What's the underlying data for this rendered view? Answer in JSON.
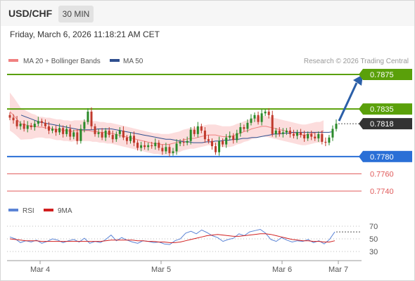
{
  "header": {
    "symbol": "USD/CHF",
    "timeframe": "30 MIN"
  },
  "datetime": "Friday, March 6, 2026 11:18:21 AM CET",
  "legend": {
    "ma20_label": "MA 20 + Bollinger Bands",
    "ma50_label": "MA 50",
    "credit": "Research © 2026 Trading Central"
  },
  "colors": {
    "resistance": "#5aa00a",
    "support": "#2a6fd6",
    "support2": "#e05a5a",
    "ma20": "#f08080",
    "ma50": "#2f4f8f",
    "band": "#fbd5d5",
    "candle_up": "#2a8a2a",
    "candle_down": "#c0392b",
    "rsi": "#5b84d6",
    "rsi_ma": "#d11f1f",
    "price_box": "#333333"
  },
  "levels": [
    {
      "value": "0.7875",
      "kind": "resistance"
    },
    {
      "value": "0.7835",
      "kind": "resistance"
    },
    {
      "value": "0.7818",
      "kind": "current"
    },
    {
      "value": "0.7780",
      "kind": "support"
    },
    {
      "value": "0.7760",
      "kind": "support2"
    },
    {
      "value": "0.7740",
      "kind": "support2"
    }
  ],
  "rsi_legend": {
    "rsi_label": "RSI",
    "ma_label": "9MA"
  },
  "rsi_ticks": [
    "70",
    "50",
    "30"
  ],
  "x_ticks": [
    "Mar 4",
    "Mar 5",
    "Mar 6",
    "Mar 7"
  ],
  "chart_data": {
    "type": "candlestick",
    "title": "USD/CHF",
    "subtitle": "30 MIN",
    "y_levels": [
      0.7875,
      0.7835,
      0.7818,
      0.778,
      0.776,
      0.774
    ],
    "current_price": 0.7818,
    "x_ticks": [
      "Mar 4",
      "Mar 5",
      "Mar 6",
      "Mar 7"
    ],
    "ohlc_close": [
      0.7825,
      0.7822,
      0.7815,
      0.7818,
      0.7812,
      0.7816,
      0.7814,
      0.7818,
      0.7821,
      0.7819,
      0.7815,
      0.781,
      0.7812,
      0.7808,
      0.7813,
      0.7806,
      0.7812,
      0.7803,
      0.7808,
      0.7798,
      0.7812,
      0.782,
      0.7832,
      0.7815,
      0.7806,
      0.7808,
      0.7802,
      0.781,
      0.7805,
      0.78,
      0.7806,
      0.781,
      0.7802,
      0.7798,
      0.7804,
      0.7796,
      0.779,
      0.7793,
      0.7791,
      0.7793,
      0.7792,
      0.7796,
      0.779,
      0.7786,
      0.7791,
      0.7784,
      0.7786,
      0.7795,
      0.7797,
      0.7796,
      0.7798,
      0.7811,
      0.7806,
      0.7815,
      0.781,
      0.78,
      0.7798,
      0.7792,
      0.7785,
      0.7798,
      0.7794,
      0.7802,
      0.7804,
      0.7799,
      0.7807,
      0.7814,
      0.7812,
      0.7819,
      0.7824,
      0.7828,
      0.782,
      0.783,
      0.7832,
      0.7828,
      0.7806,
      0.781,
      0.7806,
      0.7808,
      0.781,
      0.7806,
      0.7804,
      0.7808,
      0.7805,
      0.7801,
      0.7806,
      0.7803,
      0.7801,
      0.7806,
      0.7797,
      0.7796,
      0.7802,
      0.7812,
      0.7818
    ],
    "ma20": [
      0.7832,
      0.7828,
      0.7823,
      0.7818,
      0.7817,
      0.7816,
      0.7815,
      0.7815,
      0.7814,
      0.7814,
      0.7813,
      0.7813,
      0.7812,
      0.7811,
      0.7811,
      0.781,
      0.781,
      0.7809,
      0.781,
      0.781,
      0.781,
      0.781,
      0.781,
      0.7809,
      0.7809,
      0.7808,
      0.7808,
      0.7807,
      0.7807,
      0.7806,
      0.7805,
      0.7804,
      0.7803,
      0.7802,
      0.7801,
      0.78,
      0.7799,
      0.7798,
      0.7797,
      0.7796,
      0.7795,
      0.7795,
      0.7794,
      0.7794,
      0.7794,
      0.7795,
      0.7796,
      0.7797,
      0.7799,
      0.78,
      0.7801,
      0.7801,
      0.7802,
      0.7803,
      0.7804,
      0.7805,
      0.7805,
      0.7805,
      0.7804,
      0.7803,
      0.7803,
      0.7803,
      0.7804,
      0.7806,
      0.7807,
      0.7809,
      0.781,
      0.7812,
      0.7813,
      0.7814,
      0.7815,
      0.7815,
      0.7814,
      0.7813,
      0.7812,
      0.7811,
      0.781,
      0.7809,
      0.7808,
      0.7807,
      0.7806,
      0.7805,
      0.7805,
      0.7806,
      0.7807,
      0.7808,
      0.7808,
      0.781
    ],
    "ma50": [
      0.7828,
      0.7826,
      0.7824,
      0.7822,
      0.782,
      0.7819,
      0.7818,
      0.7817,
      0.7816,
      0.7815,
      0.7814,
      0.7813,
      0.7812,
      0.7811,
      0.7811,
      0.7811,
      0.7811,
      0.7812,
      0.7812,
      0.7812,
      0.7812,
      0.7811,
      0.781,
      0.7809,
      0.7808,
      0.7807,
      0.7806,
      0.7805,
      0.7804,
      0.7803,
      0.7802,
      0.7801,
      0.78,
      0.78,
      0.7799,
      0.7798,
      0.7797,
      0.7797,
      0.7796,
      0.7796,
      0.7796,
      0.7797,
      0.7797,
      0.7798,
      0.7798,
      0.7799,
      0.7799,
      0.78,
      0.78,
      0.7801,
      0.7801,
      0.7802,
      0.7802,
      0.7803,
      0.7804,
      0.7805,
      0.7806,
      0.7806,
      0.7807,
      0.7807,
      0.7808,
      0.7808,
      0.7808,
      0.7808,
      0.7808,
      0.7808,
      0.7808,
      0.7808,
      0.7808,
      0.7809
    ],
    "rsi": [
      53,
      50,
      44,
      47,
      45,
      48,
      43,
      46,
      50,
      48,
      44,
      47,
      49,
      45,
      51,
      43,
      46,
      44,
      49,
      56,
      47,
      52,
      48,
      45,
      43,
      47,
      46,
      44,
      45,
      42,
      41,
      47,
      50,
      59,
      62,
      58,
      64,
      60,
      55,
      52,
      46,
      49,
      51,
      58,
      55,
      61,
      63,
      65,
      59,
      49,
      46,
      52,
      48,
      45,
      47,
      46,
      49,
      44,
      47,
      42,
      49,
      61
    ],
    "rsi_ma": [
      50,
      49,
      48,
      47,
      47,
      47,
      46,
      46,
      46,
      46,
      46,
      46,
      46,
      46,
      46,
      46,
      46,
      46,
      47,
      48,
      48,
      48,
      48,
      48,
      47,
      47,
      46,
      46,
      45,
      45,
      44,
      44,
      45,
      47,
      49,
      51,
      53,
      55,
      56,
      57,
      56,
      55,
      54,
      54,
      55,
      56,
      57,
      58,
      58,
      57,
      55,
      53,
      51,
      49,
      48,
      47,
      47,
      46,
      46,
      45,
      45,
      47
    ]
  }
}
